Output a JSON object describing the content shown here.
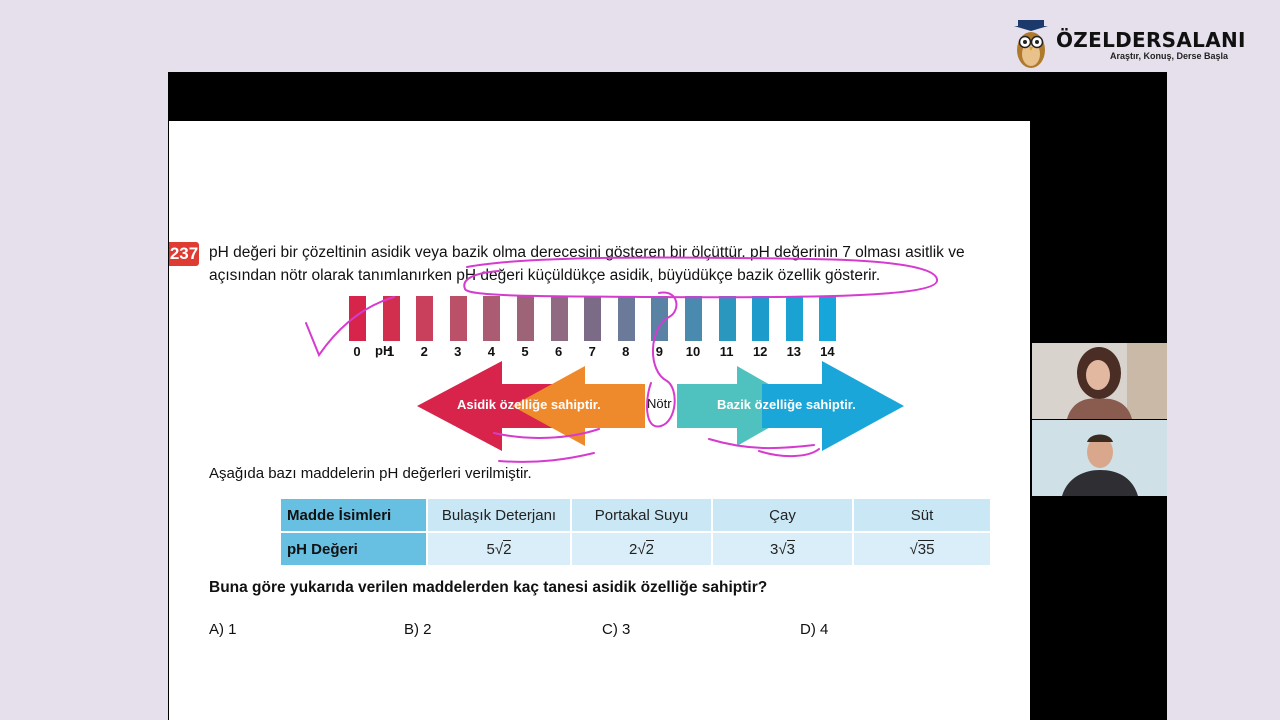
{
  "brand": {
    "name": "ÖZELDERSALANI",
    "tagline": "Araştır, Konuş, Derse Başla"
  },
  "question": {
    "number": "237",
    "intro_line1": "pH değeri bir çözeltinin asidik veya bazik olma derecesini gösteren bir ölçüttür. pH değerinin 7 olması asitlik ve",
    "intro_line2": "açısından nötr olarak tanımlanırken pH değeri küçüldükçe asidik, büyüdükçe bazik özellik gösterir.",
    "ph_label": "pH",
    "scale": [
      {
        "n": "0",
        "color": "#d6244b"
      },
      {
        "n": "1",
        "color": "#d22f4e"
      },
      {
        "n": "2",
        "color": "#c8405b"
      },
      {
        "n": "3",
        "color": "#bb5168"
      },
      {
        "n": "4",
        "color": "#ab5c72"
      },
      {
        "n": "5",
        "color": "#9d6377"
      },
      {
        "n": "6",
        "color": "#8f6a80"
      },
      {
        "n": "7",
        "color": "#7b6b86"
      },
      {
        "n": "8",
        "color": "#6a7a98"
      },
      {
        "n": "9",
        "color": "#5a82a4"
      },
      {
        "n": "10",
        "color": "#4a8aaf"
      },
      {
        "n": "11",
        "color": "#2a98be"
      },
      {
        "n": "12",
        "color": "#1d9ccb"
      },
      {
        "n": "13",
        "color": "#1aa2d3"
      },
      {
        "n": "14",
        "color": "#17a6da"
      }
    ],
    "acid_text": "Asidik özelliğe sahiptir.",
    "neutral_text": "Nötr",
    "base_text": "Bazik özelliğe sahiptir.",
    "given_text": "Aşağıda bazı maddelerin pH değerleri verilmiştir.",
    "table": {
      "header": "Madde İsimleri",
      "row_label": "pH Değeri",
      "items": [
        {
          "name": "Bulaşık Deterjanı",
          "coef": "5",
          "rad": "2"
        },
        {
          "name": "Portakal Suyu",
          "coef": "2",
          "rad": "2"
        },
        {
          "name": "Çay",
          "coef": "3",
          "rad": "3"
        },
        {
          "name": "Süt",
          "coef": "",
          "rad": "35"
        }
      ]
    },
    "prompt": "Buna göre yukarıda verilen maddelerden kaç tanesi asidik özelliğe sahiptir?",
    "options": [
      "A) 1",
      "B) 2",
      "C) 3",
      "D) 4"
    ]
  },
  "colors": {
    "acid": "#d8234b",
    "acid_light": "#ef8a2c",
    "base": "#1aa6d8",
    "base_light": "#4fc2bf",
    "number_badge": "#de3b33",
    "ink": "#d63bd0"
  }
}
